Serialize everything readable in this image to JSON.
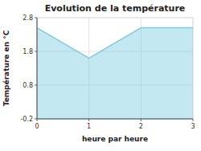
{
  "chart_data": {
    "type": "area",
    "title": "Evolution de la température",
    "x_label": "heure par heure",
    "y_label": "Température en °C",
    "x": [
      0,
      1,
      2,
      3
    ],
    "values": [
      2.5,
      1.6,
      2.5,
      2.5
    ],
    "color": "#7dcde0",
    "xlim": [
      0,
      3
    ],
    "ylim": [
      -0.2,
      2.8
    ],
    "xticks": [
      0,
      1,
      2,
      3
    ],
    "yticks": [
      -0.2,
      0.8,
      1.8,
      2.8
    ],
    "grid": true
  }
}
